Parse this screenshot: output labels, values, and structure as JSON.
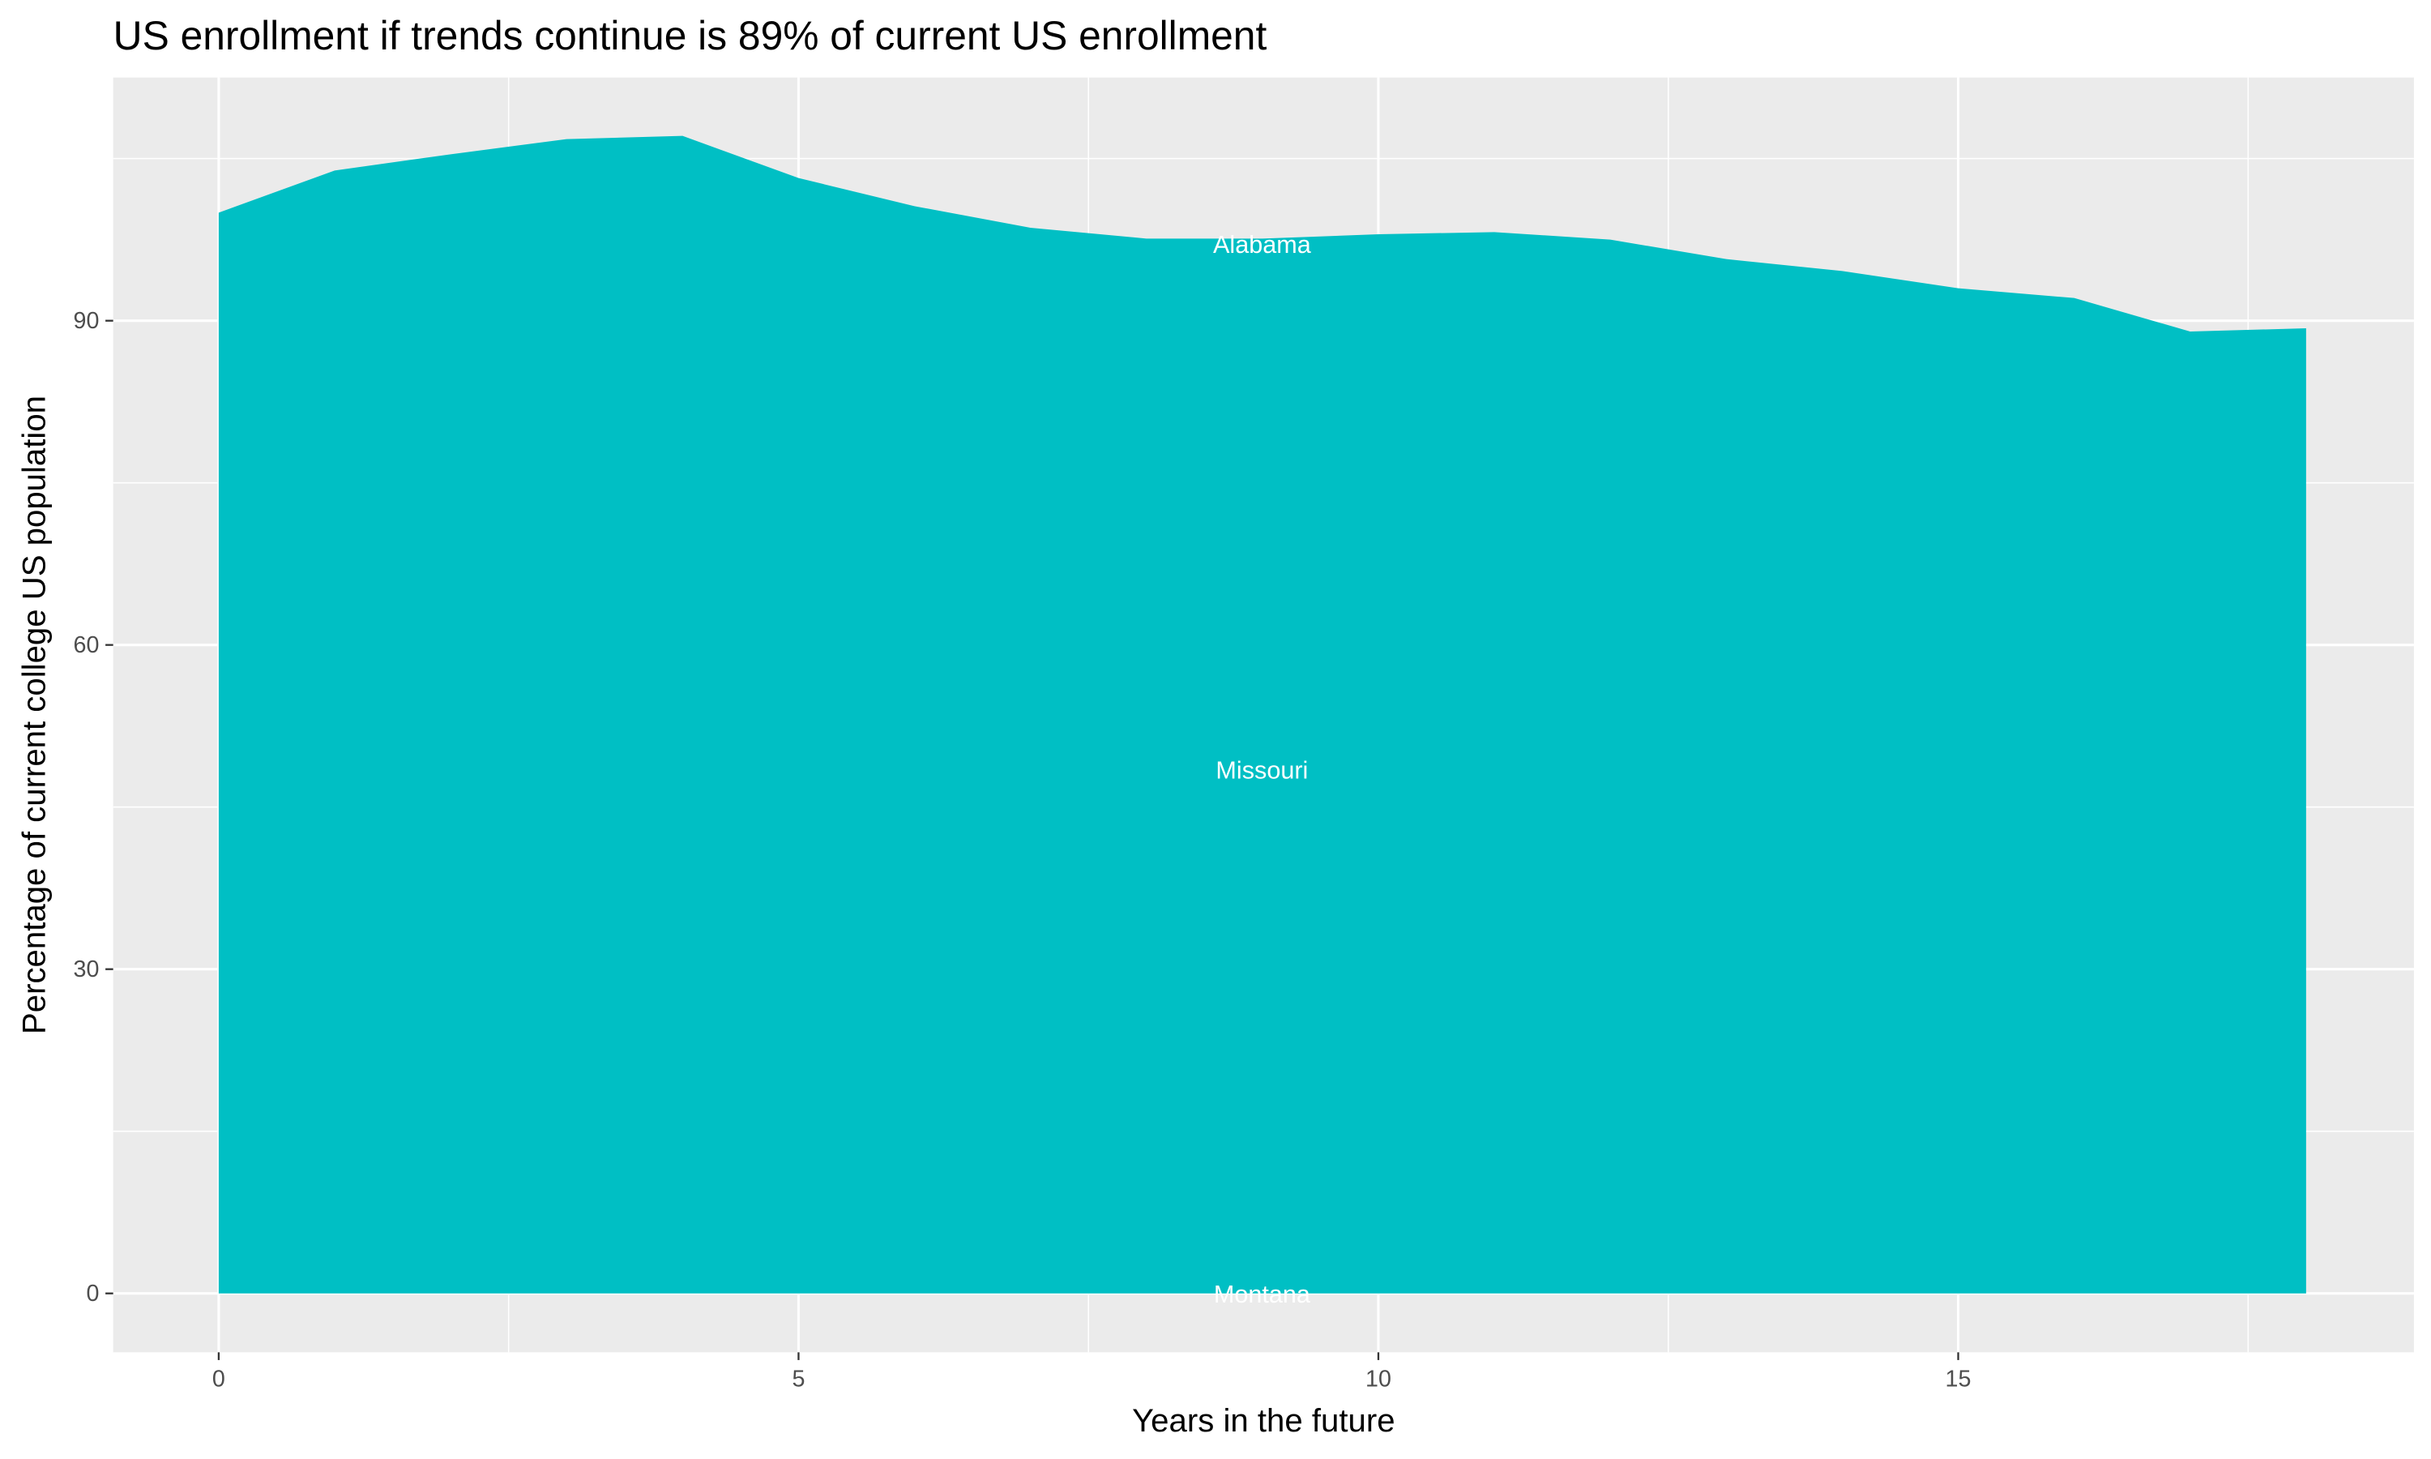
{
  "chart_data": {
    "type": "area",
    "title": "US enrollment if trends continue is 89% of current US enrollment",
    "x_label": "Years in the future",
    "y_label": "Percentage of current college US population",
    "x": [
      0,
      1,
      2,
      3,
      4,
      5,
      6,
      7,
      8,
      9,
      10,
      11,
      12,
      13,
      14,
      15,
      16,
      17,
      18
    ],
    "values": [
      100,
      103.9,
      105.4,
      106.8,
      107.1,
      103.2,
      100.6,
      98.6,
      97.6,
      97.6,
      98.0,
      98.2,
      97.5,
      95.7,
      94.6,
      93.0,
      92.1,
      89.0,
      89.3
    ],
    "color": "#00bfc4",
    "annotations": [
      "Alabama",
      "Missouri",
      "Montana"
    ],
    "xlim": [
      -0.91,
      18.93
    ],
    "xticks": [
      0,
      5,
      10,
      15
    ],
    "ylim": [
      -5.45,
      112.5
    ],
    "yticks": [
      0,
      30,
      60,
      90
    ],
    "grid": true
  }
}
